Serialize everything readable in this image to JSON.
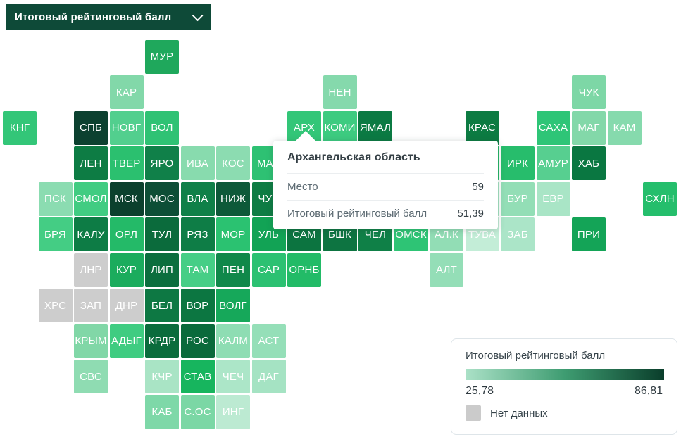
{
  "dropdown": {
    "label": "Итоговый рейтинговый балл",
    "background": "#0E4A38"
  },
  "tooltip": {
    "title": "Архангельская область",
    "rows": [
      {
        "label": "Место",
        "value": "59"
      },
      {
        "label": "Итоговый рейтинговый балл",
        "value": "51,39"
      }
    ]
  },
  "legend": {
    "title": "Итоговый рейтинговый балл",
    "min_label": "25,78",
    "max_label": "86,81",
    "no_data_label": "Нет данных",
    "no_data_color": "#CBCBCB",
    "gradient": [
      "#ABE1C7",
      "#3E9C71",
      "#0A3E2B"
    ]
  },
  "chart_data": {
    "type": "heatmap",
    "title": "Итоговый рейтинговый балл",
    "scale": {
      "min": 25.78,
      "max": 86.81,
      "no_data": "Нет данных"
    },
    "highlighted_region": {
      "name": "Архангельская область",
      "place": 59,
      "score": 51.39
    },
    "tiles": [
      {
        "label": "МУР",
        "col": 4,
        "row": 0,
        "color": "#1FA85C"
      },
      {
        "label": "КАР",
        "col": 3,
        "row": 1,
        "color": "#82D8A9"
      },
      {
        "label": "НЕН",
        "col": 9,
        "row": 1,
        "color": "#85D9AC"
      },
      {
        "label": "ЧУК",
        "col": 16,
        "row": 1,
        "color": "#7DD7A6"
      },
      {
        "label": "КНГ",
        "col": 0,
        "row": 2,
        "color": "#33C678"
      },
      {
        "label": "СПБ",
        "col": 2,
        "row": 2,
        "color": "#0C4130"
      },
      {
        "label": "НОВГ",
        "col": 3,
        "row": 2,
        "color": "#52CF8E"
      },
      {
        "label": "ВОЛ",
        "col": 4,
        "row": 2,
        "color": "#2FC274"
      },
      {
        "label": "АРХ",
        "col": 8,
        "row": 2,
        "color": "#33C678"
      },
      {
        "label": "КОМИ",
        "col": 9,
        "row": 2,
        "color": "#3DCB80"
      },
      {
        "label": "ЯМАЛ",
        "col": 10,
        "row": 2,
        "color": "#0B7A43"
      },
      {
        "label": "КРАС",
        "col": 13,
        "row": 2,
        "color": "#0C7B42"
      },
      {
        "label": "САХА",
        "col": 15,
        "row": 2,
        "color": "#2EC577"
      },
      {
        "label": "МАГ",
        "col": 16,
        "row": 2,
        "color": "#83D8A9"
      },
      {
        "label": "КАМ",
        "col": 17,
        "row": 2,
        "color": "#86DAAD"
      },
      {
        "label": "ЛЕН",
        "col": 2,
        "row": 3,
        "color": "#0D7C44"
      },
      {
        "label": "ТВЕР",
        "col": 3,
        "row": 3,
        "color": "#2BC06F"
      },
      {
        "label": "ЯРО",
        "col": 4,
        "row": 3,
        "color": "#108049"
      },
      {
        "label": "ИВА",
        "col": 5,
        "row": 3,
        "color": "#88DBAE"
      },
      {
        "label": "КОС",
        "col": 6,
        "row": 3,
        "color": "#8CDCB1"
      },
      {
        "label": "МАР",
        "col": 7,
        "row": 3,
        "color": "#2EC173"
      },
      {
        "label": "",
        "col": 13,
        "row": 3,
        "color": "#25B768"
      },
      {
        "label": "ИРК",
        "col": 14,
        "row": 3,
        "color": "#27BD6C"
      },
      {
        "label": "АМУР",
        "col": 15,
        "row": 3,
        "color": "#57CF90"
      },
      {
        "label": "ХАБ",
        "col": 16,
        "row": 3,
        "color": "#0A7741"
      },
      {
        "label": "ПСК",
        "col": 1,
        "row": 4,
        "color": "#8BDCB1"
      },
      {
        "label": "СМОЛ",
        "col": 2,
        "row": 4,
        "color": "#41CC82"
      },
      {
        "label": "МСК",
        "col": 3,
        "row": 4,
        "color": "#0B402D"
      },
      {
        "label": "МОС",
        "col": 4,
        "row": 4,
        "color": "#0D4E36"
      },
      {
        "label": "ВЛА",
        "col": 5,
        "row": 4,
        "color": "#0F8048"
      },
      {
        "label": "НИЖ",
        "col": 6,
        "row": 4,
        "color": "#0D5939"
      },
      {
        "label": "ЧУВ",
        "col": 7,
        "row": 4,
        "color": "#0E7C44"
      },
      {
        "label": "",
        "col": 13,
        "row": 4,
        "color": "#A5E3C3"
      },
      {
        "label": "БУР",
        "col": 14,
        "row": 4,
        "color": "#93DEB6"
      },
      {
        "label": "ЕВР",
        "col": 15,
        "row": 4,
        "color": "#A9E5C6"
      },
      {
        "label": "СХЛН",
        "col": 18,
        "row": 4,
        "color": "#25BE6C"
      },
      {
        "label": "БРЯ",
        "col": 1,
        "row": 5,
        "color": "#44CD84"
      },
      {
        "label": "КАЛУ",
        "col": 2,
        "row": 5,
        "color": "#0D7C45"
      },
      {
        "label": "ОРЛ",
        "col": 3,
        "row": 5,
        "color": "#24BA68"
      },
      {
        "label": "ТУЛ",
        "col": 4,
        "row": 5,
        "color": "#0B6B3C"
      },
      {
        "label": "РЯЗ",
        "col": 5,
        "row": 5,
        "color": "#0E7D46"
      },
      {
        "label": "МОР",
        "col": 6,
        "row": 5,
        "color": "#2BC271"
      },
      {
        "label": "УЛЬ",
        "col": 7,
        "row": 5,
        "color": "#12A355"
      },
      {
        "label": "САМ",
        "col": 8,
        "row": 5,
        "color": "#0C7440"
      },
      {
        "label": "БШК",
        "col": 9,
        "row": 5,
        "color": "#0D7441"
      },
      {
        "label": "ЧЕЛ",
        "col": 10,
        "row": 5,
        "color": "#0F8047"
      },
      {
        "label": "ОМСК",
        "col": 11,
        "row": 5,
        "color": "#2EC475"
      },
      {
        "label": "АЛ.К",
        "col": 12,
        "row": 5,
        "color": "#92DDB5"
      },
      {
        "label": "ТУВА",
        "col": 13,
        "row": 5,
        "color": "#C3EDD7"
      },
      {
        "label": "ЗАБ",
        "col": 14,
        "row": 5,
        "color": "#ABE5C8"
      },
      {
        "label": "ПРИ",
        "col": 16,
        "row": 5,
        "color": "#14A457"
      },
      {
        "label": "ЛНР",
        "col": 2,
        "row": 6,
        "color": "#CDCDCD"
      },
      {
        "label": "КУР",
        "col": 3,
        "row": 6,
        "color": "#1BAC5D"
      },
      {
        "label": "ЛИП",
        "col": 4,
        "row": 6,
        "color": "#0C6E3E"
      },
      {
        "label": "ТАМ",
        "col": 5,
        "row": 6,
        "color": "#46CE86"
      },
      {
        "label": "ПЕН",
        "col": 6,
        "row": 6,
        "color": "#10884A"
      },
      {
        "label": "САР",
        "col": 7,
        "row": 6,
        "color": "#2CC172"
      },
      {
        "label": "ОРНБ",
        "col": 8,
        "row": 6,
        "color": "#22BB67"
      },
      {
        "label": "АЛТ",
        "col": 12,
        "row": 6,
        "color": "#94DEB7"
      },
      {
        "label": "ХРС",
        "col": 1,
        "row": 7,
        "color": "#CDCDCD"
      },
      {
        "label": "ЗАП",
        "col": 2,
        "row": 7,
        "color": "#CDCDCD"
      },
      {
        "label": "ДНР",
        "col": 3,
        "row": 7,
        "color": "#CDCDCD"
      },
      {
        "label": "БЕЛ",
        "col": 4,
        "row": 7,
        "color": "#0D7843"
      },
      {
        "label": "ВОР",
        "col": 5,
        "row": 7,
        "color": "#0C7641"
      },
      {
        "label": "ВОЛГ",
        "col": 6,
        "row": 7,
        "color": "#16A85A"
      },
      {
        "label": "КРЫМ",
        "col": 2,
        "row": 8,
        "color": "#81D7A7"
      },
      {
        "label": "АДЫГ",
        "col": 3,
        "row": 8,
        "color": "#3FCC81"
      },
      {
        "label": "КРДР",
        "col": 4,
        "row": 8,
        "color": "#0A6C3C"
      },
      {
        "label": "РОС",
        "col": 5,
        "row": 8,
        "color": "#0A6A3B"
      },
      {
        "label": "КАЛМ",
        "col": 6,
        "row": 8,
        "color": "#8EDDB3"
      },
      {
        "label": "АСТ",
        "col": 7,
        "row": 8,
        "color": "#95DFB8"
      },
      {
        "label": "СВС",
        "col": 2,
        "row": 9,
        "color": "#8FDCB2"
      },
      {
        "label": "КЧР",
        "col": 4,
        "row": 9,
        "color": "#A9E4C5"
      },
      {
        "label": "СТАВ",
        "col": 5,
        "row": 9,
        "color": "#17B55E"
      },
      {
        "label": "ЧЕЧ",
        "col": 6,
        "row": 9,
        "color": "#ACE6C8"
      },
      {
        "label": "ДАГ",
        "col": 7,
        "row": 9,
        "color": "#A5E3C3"
      },
      {
        "label": "КАБ",
        "col": 4,
        "row": 10,
        "color": "#7ED8A8"
      },
      {
        "label": "С.ОС",
        "col": 5,
        "row": 10,
        "color": "#7BD7A5"
      },
      {
        "label": "ИНГ",
        "col": 6,
        "row": 10,
        "color": "#BCEAD2"
      }
    ]
  }
}
